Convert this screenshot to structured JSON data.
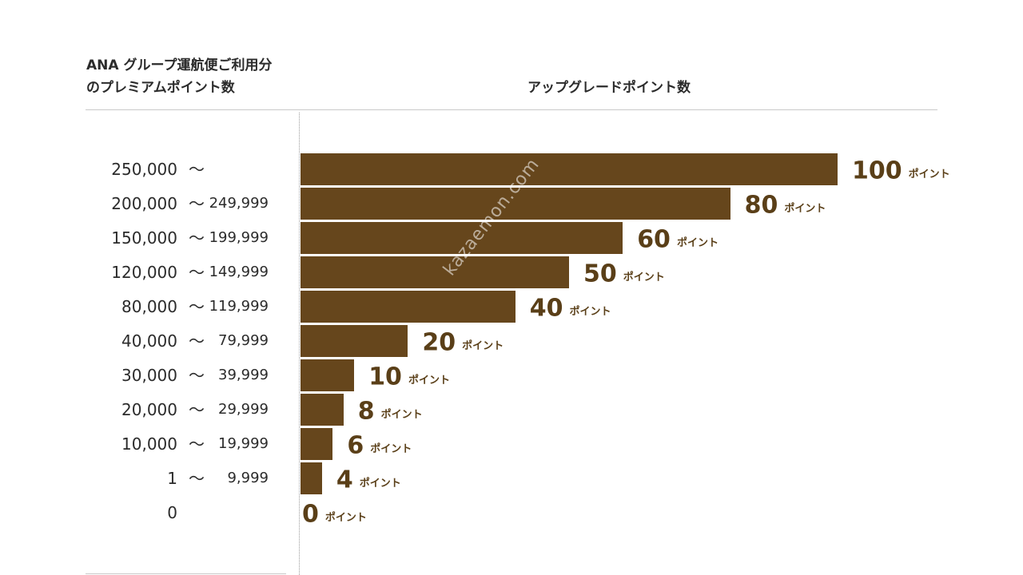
{
  "header": {
    "left_line1": "ANA グループ運航便ご利用分",
    "left_line2": "のプレミアムポイント数",
    "right": "アップグレードポイント数"
  },
  "watermark": "kazaemon.com",
  "colors": {
    "bar": "#66461c",
    "label": "#5a3f18",
    "rule": "#c9c9c9"
  },
  "chart_data": {
    "type": "bar",
    "orientation": "horizontal",
    "xlim": [
      0,
      100
    ],
    "unit_label": "ポイント",
    "rows": [
      {
        "from": "250,000",
        "tilde": "〜",
        "to": "",
        "value": 100
      },
      {
        "from": "200,000",
        "tilde": "〜",
        "to": "249,999",
        "value": 80
      },
      {
        "from": "150,000",
        "tilde": "〜",
        "to": "199,999",
        "value": 60
      },
      {
        "from": "120,000",
        "tilde": "〜",
        "to": "149,999",
        "value": 50
      },
      {
        "from": "80,000",
        "tilde": "〜",
        "to": "119,999",
        "value": 40
      },
      {
        "from": "40,000",
        "tilde": "〜",
        "to": "79,999",
        "value": 20
      },
      {
        "from": "30,000",
        "tilde": "〜",
        "to": "39,999",
        "value": 10
      },
      {
        "from": "20,000",
        "tilde": "〜",
        "to": "29,999",
        "value": 8
      },
      {
        "from": "10,000",
        "tilde": "〜",
        "to": "19,999",
        "value": 6
      },
      {
        "from": "1",
        "tilde": "〜",
        "to": "9,999",
        "value": 4
      },
      {
        "from": "0",
        "tilde": "",
        "to": "",
        "value": 0
      }
    ]
  }
}
